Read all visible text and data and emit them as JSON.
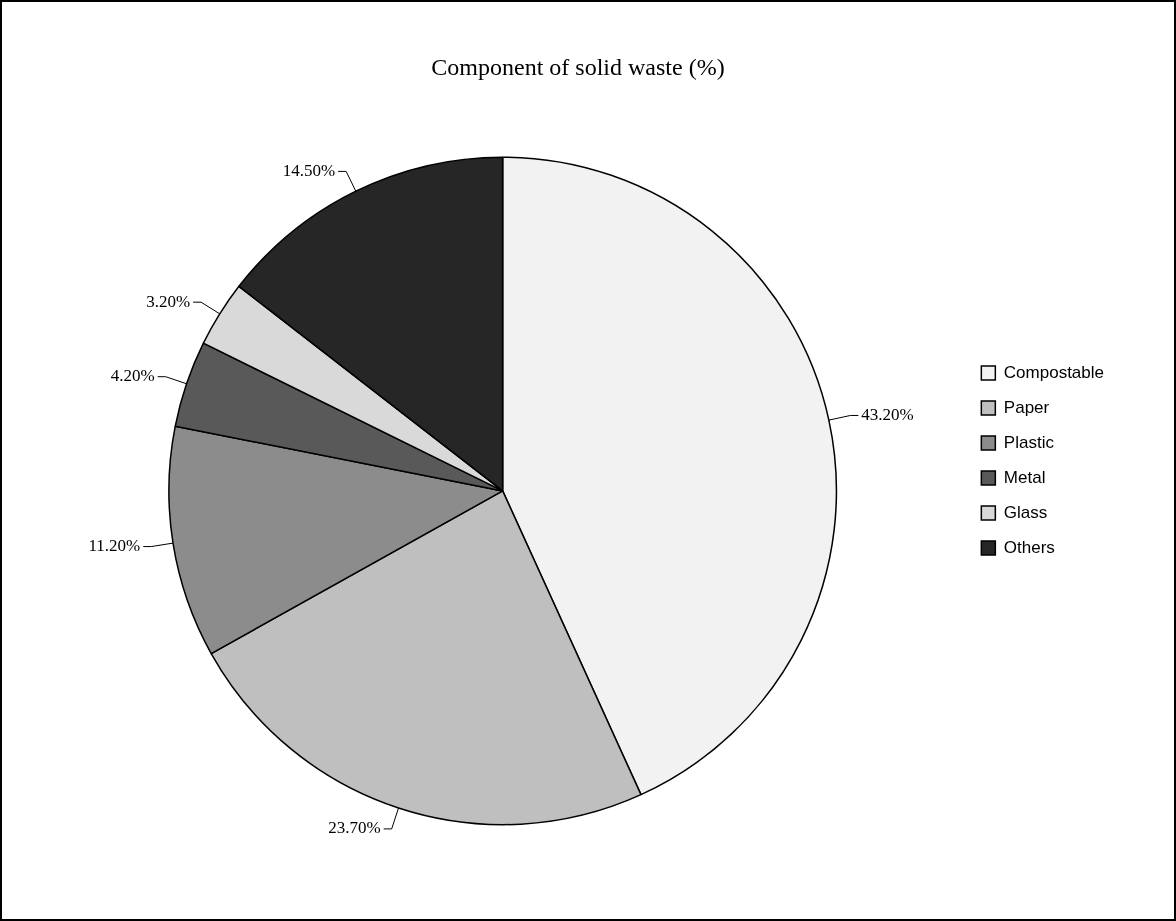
{
  "chart_data": {
    "type": "pie",
    "title": "Component of solid waste (%)",
    "categories": [
      "Compostable",
      "Paper",
      "Plastic",
      "Metal",
      "Glass",
      "Others"
    ],
    "values": [
      43.2,
      23.7,
      11.2,
      4.2,
      3.2,
      14.5
    ],
    "value_labels": [
      "43.20%",
      "23.70%",
      "11.20%",
      "4.20%",
      "3.20%",
      "14.50%"
    ],
    "colors": [
      "#f2f2f2",
      "#bfbfbf",
      "#8c8c8c",
      "#595959",
      "#d9d9d9",
      "#262626"
    ],
    "legend": "right"
  }
}
